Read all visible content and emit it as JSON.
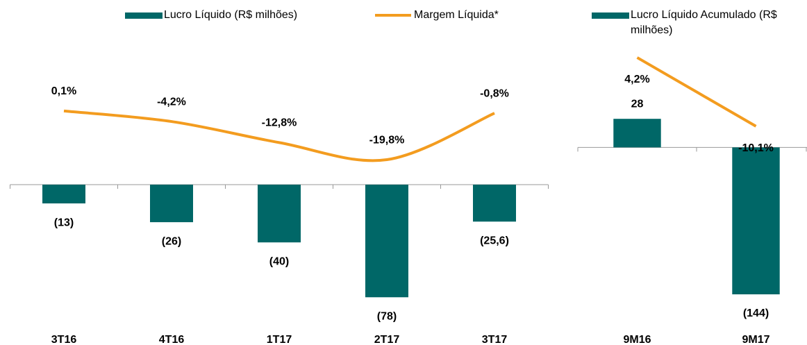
{
  "chart_data": [
    {
      "type": "bar",
      "categories": [
        "3T16",
        "4T16",
        "1T17",
        "2T17",
        "3T17"
      ],
      "ylim": [
        -100,
        100
      ],
      "y2lim": [
        -89,
        29
      ],
      "series": [
        {
          "name": "Lucro Líquido (R$ milhões)",
          "type": "bar",
          "color": "#006767",
          "values": [
            -13,
            -26,
            -40,
            -78,
            -25.6
          ],
          "value_labels": [
            "(13)",
            "(26)",
            "(40)",
            "(78)",
            "(25,6)"
          ]
        },
        {
          "name": "Margem Líquida*",
          "type": "line",
          "axis": "y2",
          "color": "#f39c1f",
          "values": [
            0.1,
            -4.2,
            -12.8,
            -19.8,
            -0.8
          ],
          "value_labels": [
            "0,1%",
            "-4,2%",
            "-12,8%",
            "-19,8%",
            "-0,8%"
          ]
        }
      ]
    },
    {
      "type": "bar",
      "categories": [
        "9M16",
        "9M17"
      ],
      "ylim": [
        -178,
        105
      ],
      "y2lim": [
        -52.3,
        7.8
      ],
      "series": [
        {
          "name": "Lucro Líquido Acumulado (R$ milhões)",
          "type": "bar",
          "color": "#006767",
          "values": [
            28,
            -144
          ],
          "value_labels": [
            "28",
            "(144)"
          ]
        },
        {
          "type": "line",
          "axis": "y2",
          "color": "#f39c1f",
          "values": [
            4.2,
            -10.1
          ],
          "value_labels": [
            "4,2%",
            "-10,1%"
          ]
        }
      ]
    }
  ]
}
